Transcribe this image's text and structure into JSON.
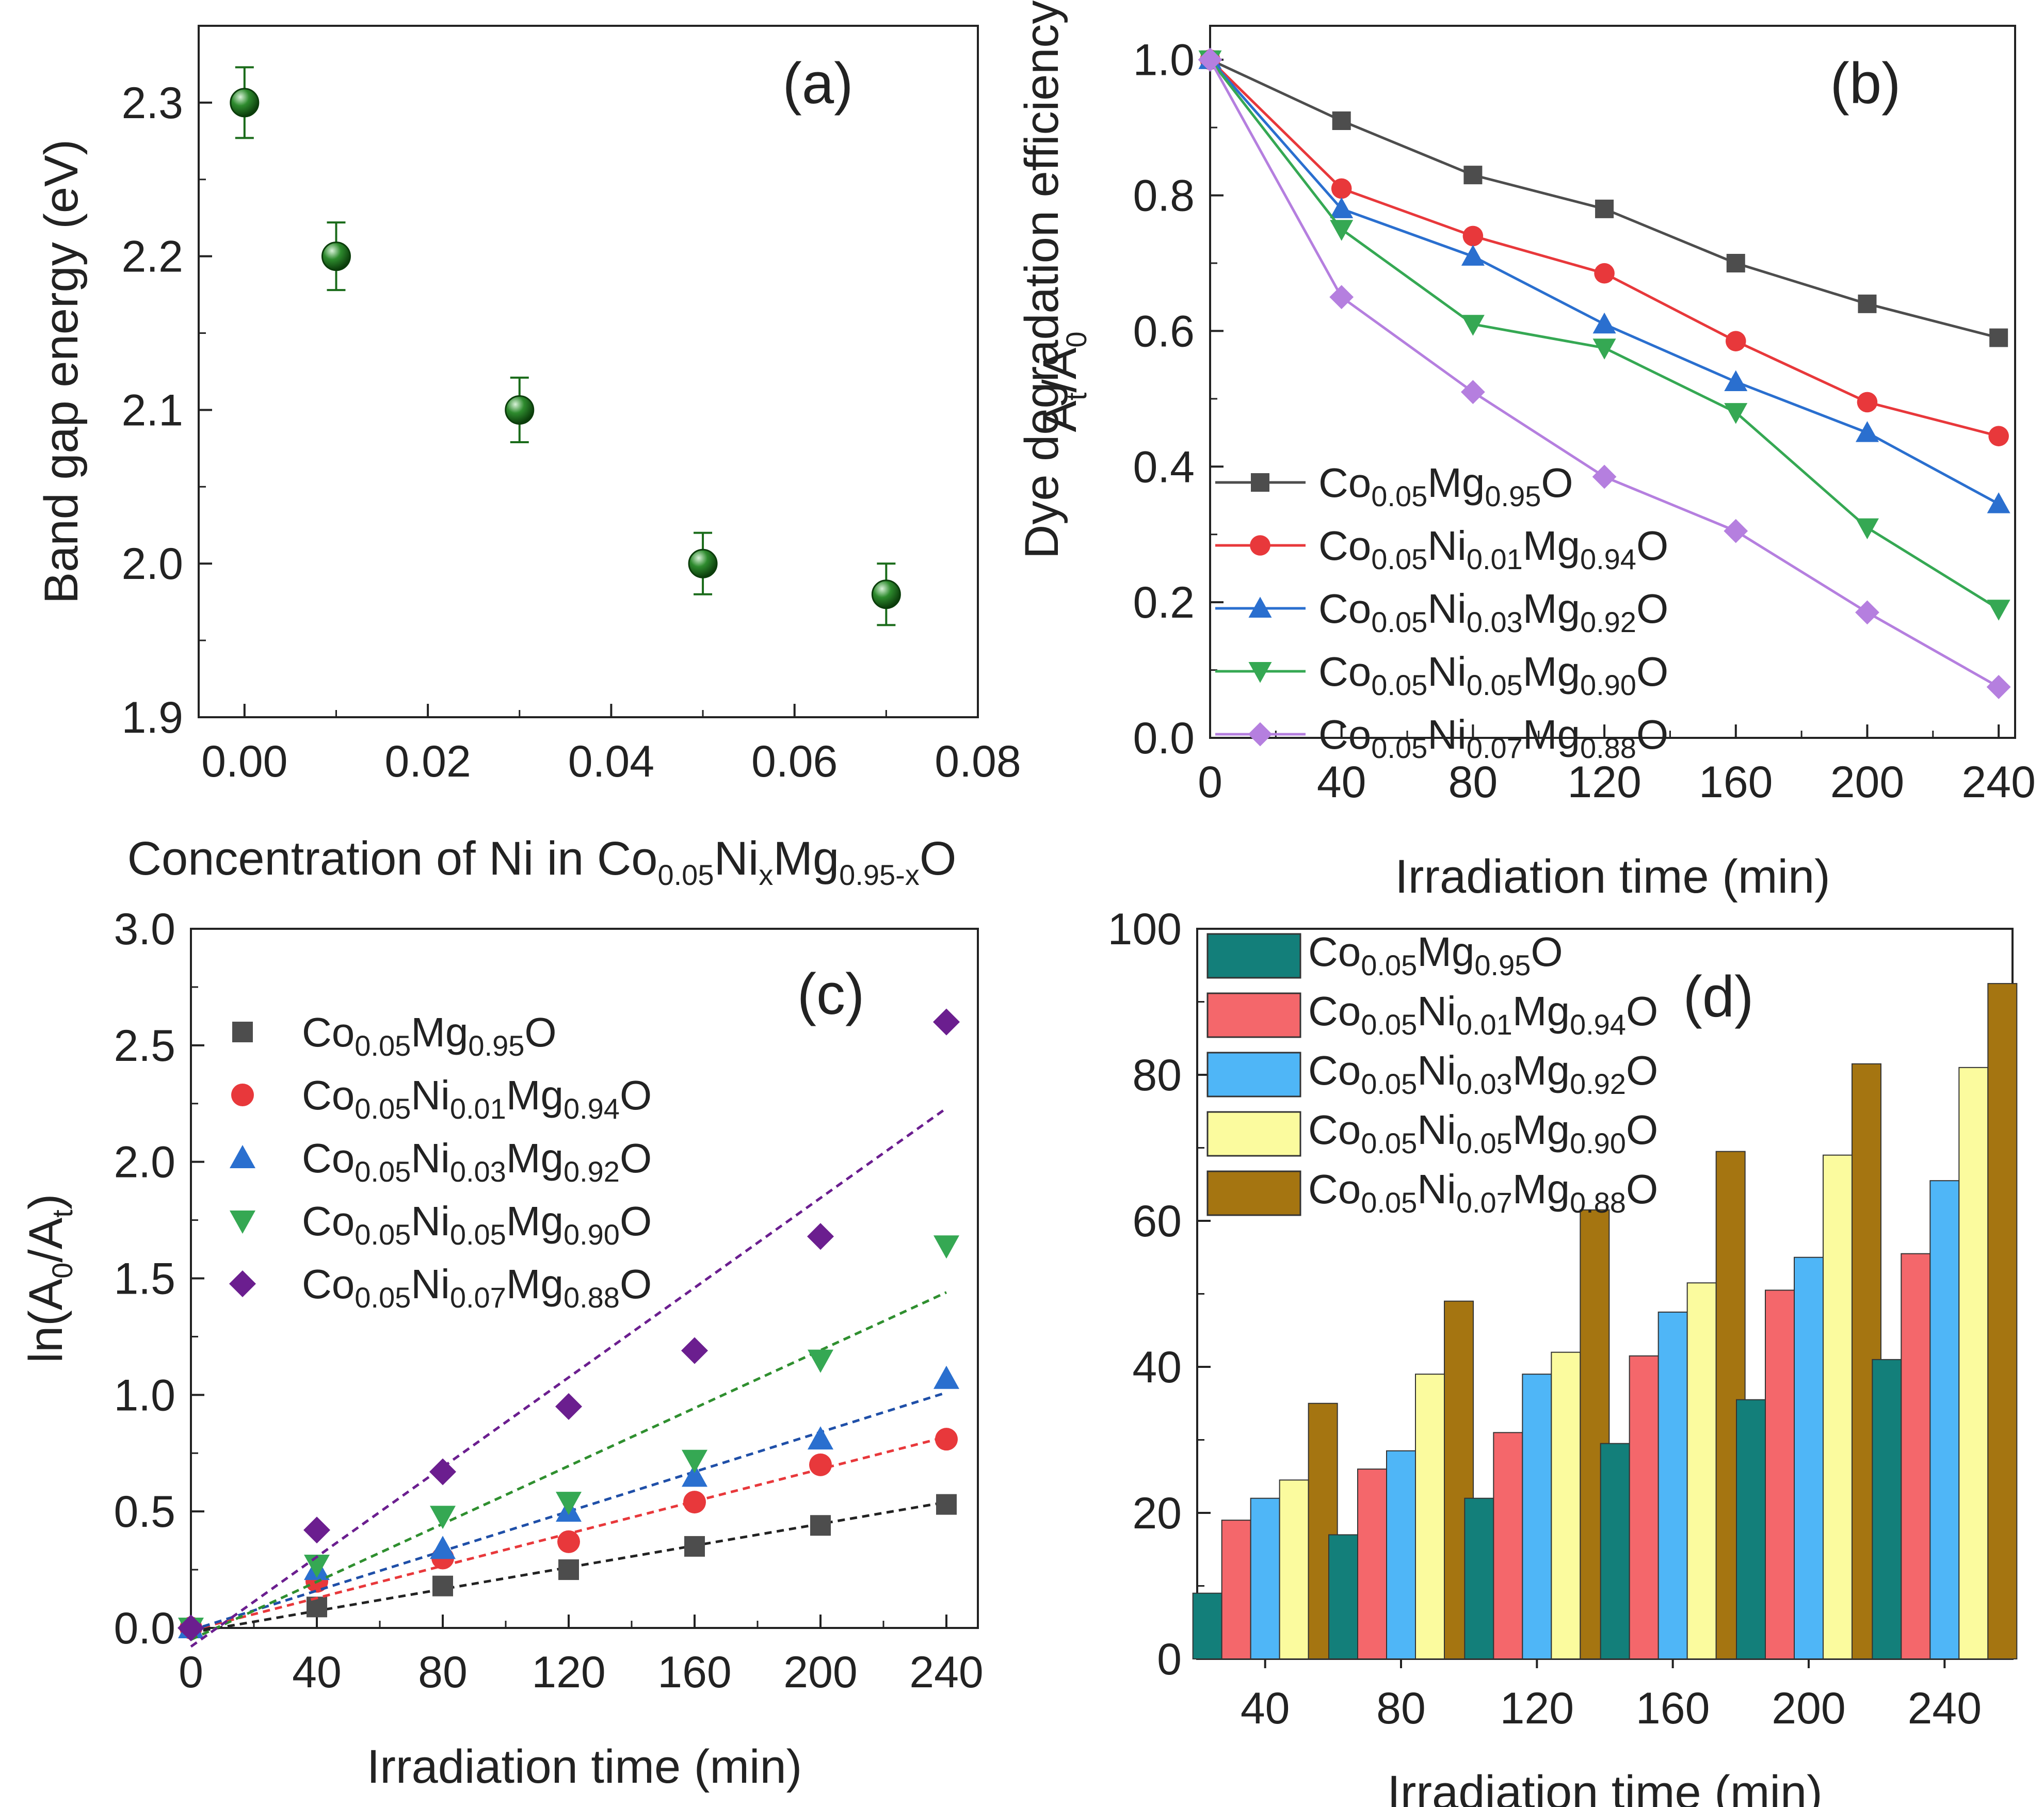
{
  "figure": {
    "materials": {
      "m0": {
        "base": [
          "Co",
          "0.05",
          "Mg",
          "0.95",
          "O"
        ]
      },
      "m1": {
        "base": [
          "Co",
          "0.05",
          "Ni",
          "0.01",
          "Mg",
          "0.94",
          "O"
        ]
      },
      "m3": {
        "base": [
          "Co",
          "0.05",
          "Ni",
          "0.03",
          "Mg",
          "0.92",
          "O"
        ]
      },
      "m5": {
        "base": [
          "Co",
          "0.05",
          "Ni",
          "0.05",
          "Mg",
          "0.90",
          "O"
        ]
      },
      "m7": {
        "base": [
          "Co",
          "0.05",
          "Ni",
          "0.07",
          "Mg",
          "0.88",
          "O"
        ]
      }
    }
  },
  "chart_data": [
    {
      "id": "a",
      "panel_label": "(a)",
      "type": "scatter",
      "xlabel": "Concentration of Ni in Co0.05NixMg0.95-xO",
      "xlabel_parts": [
        "Concentration of Ni in Co",
        "0.05",
        "Ni",
        "x",
        "Mg",
        "0.95-x",
        "O"
      ],
      "ylabel": "Band gap energy (eV)",
      "xlim": [
        -0.005,
        0.08
      ],
      "ylim": [
        1.9,
        2.35
      ],
      "xticks": [
        "0.00",
        "0.02",
        "0.04",
        "0.06",
        "0.08"
      ],
      "yticks": [
        "1.9",
        "2.0",
        "2.1",
        "2.2",
        "2.3"
      ],
      "x": [
        0.0,
        0.01,
        0.03,
        0.05,
        0.07
      ],
      "y": [
        2.3,
        2.2,
        2.1,
        2.0,
        1.98
      ],
      "yerr": [
        0.023,
        0.022,
        0.021,
        0.02,
        0.02
      ],
      "color": "#1a6b1a"
    },
    {
      "id": "b",
      "panel_label": "(b)",
      "type": "line",
      "xlabel": "Irradiation time (min)",
      "ylabel": "At/A0",
      "xlim": [
        0,
        245
      ],
      "ylim": [
        0,
        1.05
      ],
      "xticks": [
        "0",
        "40",
        "80",
        "120",
        "160",
        "200",
        "240"
      ],
      "yticks": [
        "0.0",
        "0.2",
        "0.4",
        "0.6",
        "0.8",
        "1.0"
      ],
      "x": [
        0,
        40,
        80,
        120,
        160,
        200,
        240
      ],
      "legend_position": "lower-left",
      "series": [
        {
          "name": "Co0.05Mg0.95O",
          "material": "m0",
          "color": "#4d4d4d",
          "marker": "square",
          "values": [
            1.0,
            0.91,
            0.83,
            0.78,
            0.7,
            0.64,
            0.59
          ]
        },
        {
          "name": "Co0.05Ni0.01Mg0.94O",
          "material": "m1",
          "color": "#e8383b",
          "marker": "circle",
          "values": [
            1.0,
            0.81,
            0.74,
            0.685,
            0.585,
            0.495,
            0.445
          ]
        },
        {
          "name": "Co0.05Ni0.03Mg0.92O",
          "material": "m3",
          "color": "#2a6fcf",
          "marker": "triangle-up",
          "values": [
            1.0,
            0.78,
            0.71,
            0.61,
            0.525,
            0.45,
            0.345
          ]
        },
        {
          "name": "Co0.05Ni0.05Mg0.90O",
          "material": "m5",
          "color": "#35a853",
          "marker": "triangle-down",
          "values": [
            1.0,
            0.75,
            0.61,
            0.575,
            0.48,
            0.31,
            0.19
          ]
        },
        {
          "name": "Co0.05Ni0.07Mg0.88O",
          "material": "m7",
          "color": "#b57fdf",
          "marker": "diamond",
          "values": [
            1.0,
            0.65,
            0.51,
            0.385,
            0.305,
            0.185,
            0.075
          ]
        }
      ]
    },
    {
      "id": "c",
      "panel_label": "(c)",
      "type": "scatter",
      "xlabel": "Irradiation time (min)",
      "ylabel": "ln(A0/At)",
      "xlim": [
        0,
        250
      ],
      "ylim": [
        0,
        3.0
      ],
      "xticks": [
        "0",
        "40",
        "80",
        "120",
        "160",
        "200",
        "240"
      ],
      "yticks": [
        "0.0",
        "0.5",
        "1.0",
        "1.5",
        "2.0",
        "2.5",
        "3.0"
      ],
      "x": [
        0,
        40,
        80,
        120,
        160,
        200,
        240
      ],
      "legend_position": "upper-left",
      "series": [
        {
          "name": "Co0.05Mg0.95O",
          "material": "m0",
          "color": "#4d4d4d",
          "marker": "square",
          "values": [
            0.0,
            0.09,
            0.18,
            0.25,
            0.35,
            0.44,
            0.53
          ],
          "fit": [
            -0.02,
            0.54
          ]
        },
        {
          "name": "Co0.05Ni0.01Mg0.94O",
          "material": "m1",
          "color": "#e8383b",
          "marker": "circle",
          "values": [
            0.0,
            0.2,
            0.3,
            0.37,
            0.54,
            0.7,
            0.81
          ],
          "fit": [
            -0.01,
            0.82
          ]
        },
        {
          "name": "Co0.05Ni0.03Mg0.92O",
          "material": "m3",
          "color": "#2a6fcf",
          "marker": "triangle-up",
          "values": [
            0.0,
            0.25,
            0.34,
            0.5,
            0.65,
            0.81,
            1.07
          ],
          "fit": [
            -0.01,
            1.01
          ]
        },
        {
          "name": "Co0.05Ni0.05Mg0.90O",
          "material": "m5",
          "color": "#35a853",
          "marker": "triangle-down",
          "values": [
            0.0,
            0.27,
            0.48,
            0.54,
            0.72,
            1.15,
            1.64
          ],
          "fit": [
            -0.05,
            1.44
          ]
        },
        {
          "name": "Co0.05Ni0.07Mg0.88O",
          "material": "m7",
          "color": "#6b1e8f",
          "marker": "diamond",
          "values": [
            0.0,
            0.42,
            0.67,
            0.95,
            1.19,
            1.68,
            2.6
          ],
          "fit": [
            -0.08,
            2.23
          ]
        }
      ],
      "fit_color": {
        "Co0.05Mg0.95O": "#222222",
        "Co0.05Ni0.01Mg0.94O": "#e8383b",
        "Co0.05Ni0.03Mg0.92O": "#1f4fa8",
        "Co0.05Ni0.05Mg0.90O": "#2f8f2f",
        "Co0.05Ni0.07Mg0.88O": "#6b1e8f"
      }
    },
    {
      "id": "d",
      "panel_label": "(d)",
      "type": "bar",
      "xlabel": "Irradiation time (min)",
      "ylabel": "Dye degradation efficiency (%)",
      "ylim": [
        0,
        100
      ],
      "yticks": [
        "0",
        "20",
        "40",
        "60",
        "80",
        "100"
      ],
      "categories": [
        "40",
        "80",
        "120",
        "160",
        "200",
        "240"
      ],
      "legend_position": "top-left",
      "series": [
        {
          "name": "Co0.05Mg0.95O",
          "material": "m0",
          "color": "#137f7a",
          "values": [
            9,
            17,
            22,
            29.5,
            35.5,
            41
          ]
        },
        {
          "name": "Co0.05Ni0.01Mg0.94O",
          "material": "m1",
          "color": "#f4676b",
          "values": [
            19,
            26,
            31,
            41.5,
            50.5,
            55.5
          ]
        },
        {
          "name": "Co0.05Ni0.03Mg0.92O",
          "material": "m3",
          "color": "#4fb6f7",
          "values": [
            22,
            28.5,
            39,
            47.5,
            55,
            65.5
          ]
        },
        {
          "name": "Co0.05Ni0.05Mg0.90O",
          "material": "m5",
          "color": "#fbfb9e",
          "values": [
            24.5,
            39,
            42,
            51.5,
            69,
            81
          ]
        },
        {
          "name": "Co0.05Ni0.07Mg0.88O",
          "material": "m7",
          "color": "#a57511",
          "values": [
            35,
            49,
            61.5,
            69.5,
            81.5,
            92.5
          ]
        }
      ]
    }
  ]
}
